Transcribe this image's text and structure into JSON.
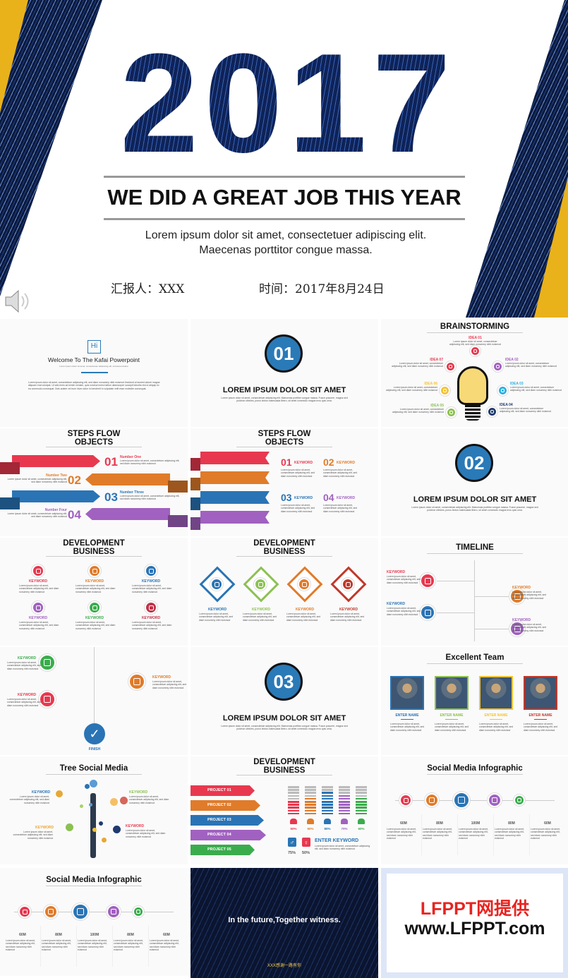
{
  "cover": {
    "year": "2017",
    "slogan": "WE DID A GREAT JOB THIS YEAR",
    "subtitle_line1": "Lorem ipsum dolor sit amet, consectetuer adipiscing elit.",
    "subtitle_line2": "Maecenas porttitor congue massa.",
    "reporter": "汇报人：XXX",
    "time": "时间：2017年8月24日",
    "audio_icon": "speaker-icon"
  },
  "lorem_short": "Lorem ipsum dolor sit amet, consectetuer adipiscing elit, sed diam nonummy nibh euismod",
  "lorem_long": "Lorem ipsum dolor sit amet, consectetuer adipiscing elit, sed diam nonummy nibh euismod tincidunt ut laoreet dolore magna aliquam erat volutpat. Ut wisi enim ad minim veniam, quis nostrud exerci tation ullamcorper suscipit lobortis nisl ut aliquip ex ea commodo consequat. Duis autem vel eum iriure dolor in hendrerit in vulputate velit esse molestie consequat.",
  "lorem_section": "Lorem ipsum dolor sit amet, consectetuer adipiscing elit. Maecenas porttitor congue massa. Fusce posuere, magna sed pulvinar ultricies, purus lectus malesuada libero, sit amet commodo magna eros quis urna.",
  "colors": {
    "red": "#e8384f",
    "orange": "#e07b2a",
    "blue": "#2a74b5",
    "purple": "#a161c0",
    "green": "#3aac4c",
    "yellow": "#f5c231",
    "navy": "#1f3a6e"
  },
  "welcome": {
    "badge": "Hi",
    "title": "Welcome To The Kafai Powerpoint",
    "tagline": "Lorem ipsum dolor sit amet, consectetuer adipiscing elit, sit laoreet dolore"
  },
  "sections": [
    {
      "number": "01",
      "title": "LOREM IPSUM DOLOR SIT AMET"
    },
    {
      "number": "02",
      "title": "LOREM IPSUM DOLOR SIT AMET"
    },
    {
      "number": "03",
      "title": "LOREM IPSUM DOLOR SIT AMET"
    }
  ],
  "brainstorming": {
    "title": "BRAINSTORMING",
    "ideas": [
      "IDEA 01",
      "IDEA 02",
      "IDEA 03",
      "IDEA 04",
      "IDEA 05",
      "IDEA 06",
      "IDEA 07"
    ]
  },
  "steps1": {
    "title_line1": "STEPS FLOW",
    "title_line2": "OBJECTS",
    "steps": [
      {
        "num": "01",
        "label": "Number One"
      },
      {
        "num": "02",
        "label": "Number Two"
      },
      {
        "num": "03",
        "label": "Number Three"
      },
      {
        "num": "04",
        "label": "Number Four"
      }
    ]
  },
  "steps2": {
    "title_line1": "STEPS FLOW",
    "title_line2": "OBJECTS",
    "items": [
      {
        "num": "01",
        "label": "KEYWORD"
      },
      {
        "num": "02",
        "label": "KEYWORD"
      },
      {
        "num": "03",
        "label": "KEYWORD"
      },
      {
        "num": "04",
        "label": "KEYWORD"
      }
    ]
  },
  "dev1": {
    "title_line1": "DEVELOPMENT",
    "title_line2": "BUSINESS",
    "keyword": "KEYWORD"
  },
  "dev2": {
    "title_line1": "DEVELOPMENT",
    "title_line2": "BUSINESS",
    "keyword": "KEYWORD"
  },
  "timeline": {
    "title": "TIMELINE",
    "keyword": "KEYWORD"
  },
  "vtimeline": {
    "keyword": "KEYWORD",
    "finish": "FINISH"
  },
  "team": {
    "title": "Excellent Team",
    "member": "ENTER NAME"
  },
  "tree": {
    "title": "Tree Social Media",
    "keyword": "KEYWORD"
  },
  "projects": {
    "title_line1": "DEVELOPMENT",
    "title_line2": "BUSINESS",
    "items": [
      "PROJECT 01",
      "PROJECT 02",
      "PROJECT 03",
      "PROJECT 04",
      "PROJECT 05"
    ],
    "bar_percents": [
      50,
      60,
      80,
      70,
      60
    ],
    "enter_keyword": "ENTER KEYWORD",
    "male_pct": "75%",
    "female_pct": "50%"
  },
  "social": {
    "title": "Social Media Infographic",
    "values": [
      "60M",
      "80M",
      "100M",
      "80M",
      "60M"
    ]
  },
  "ending": {
    "text": "In the future,Together witness.",
    "thanks": "XXX感谢一路有你"
  },
  "brand": {
    "line1": "LFPPT网提供",
    "line2": "www.LFPPT.com"
  }
}
